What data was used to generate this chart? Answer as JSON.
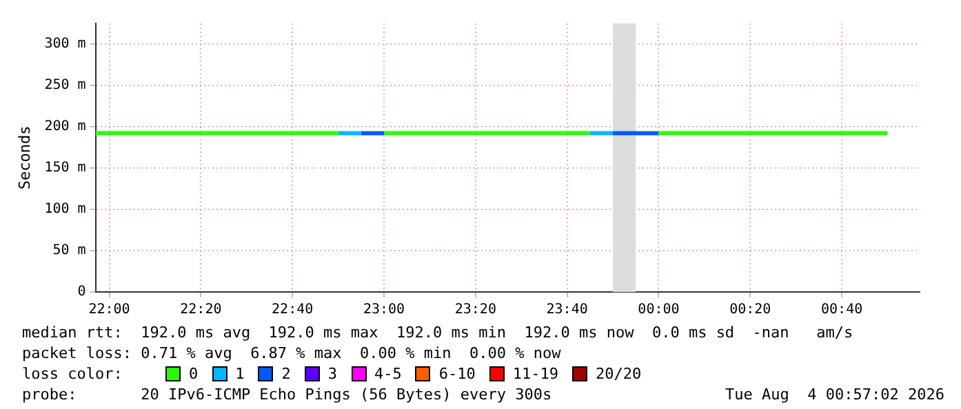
{
  "chart_data": {
    "type": "line",
    "ylabel": "Seconds",
    "legend_title": "loss color:",
    "legend": "bottom",
    "grid": true,
    "marker": "none",
    "line_style": "solid",
    "xlim": [
      "2026-08-03T21:57",
      "2026-08-04T00:57"
    ],
    "xticks": [
      {
        "value": "2026-08-03T22:00",
        "label": "22:00"
      },
      {
        "value": "2026-08-03T22:20",
        "label": "22:20"
      },
      {
        "value": "2026-08-03T22:40",
        "label": "22:40"
      },
      {
        "value": "2026-08-03T23:00",
        "label": "23:00"
      },
      {
        "value": "2026-08-03T23:20",
        "label": "23:20"
      },
      {
        "value": "2026-08-03T23:40",
        "label": "23:40"
      },
      {
        "value": "2026-08-04T00:00",
        "label": "00:00"
      },
      {
        "value": "2026-08-04T00:20",
        "label": "00:20"
      },
      {
        "value": "2026-08-04T00:40",
        "label": "00:40"
      }
    ],
    "ylim": [
      0,
      325
    ],
    "yticks": [
      {
        "value": 0,
        "label": "0"
      },
      {
        "value": 50,
        "label": "50 m"
      },
      {
        "value": 100,
        "label": "100 m"
      },
      {
        "value": 150,
        "label": "150 m"
      },
      {
        "value": 200,
        "label": "200 m"
      },
      {
        "value": 250,
        "label": "250 m"
      },
      {
        "value": 300,
        "label": "300 m"
      }
    ],
    "bands": [
      {
        "axis": "x",
        "from": "2026-08-03T23:50",
        "to": "2026-08-03T23:55",
        "color": "#dddddd"
      }
    ],
    "series": [
      {
        "name": "0",
        "color": "#26ff00",
        "x": [
          "2026-08-03T21:57",
          "2026-08-03T22:50",
          "2026-08-03T22:51",
          "2026-08-03T23:00",
          "2026-08-03T23:45",
          "2026-08-03T23:46",
          "2026-08-04T00:00",
          "2026-08-04T00:50"
        ],
        "values": [
          192,
          192,
          null,
          192,
          192,
          null,
          192,
          192
        ]
      },
      {
        "name": "1",
        "color": "#00b8ff",
        "x": [
          "2026-08-03T22:50",
          "2026-08-03T22:55",
          "2026-08-03T22:57",
          "2026-08-03T23:45",
          "2026-08-03T23:50"
        ],
        "values": [
          192,
          192,
          null,
          192,
          192
        ]
      },
      {
        "name": "2",
        "color": "#0059ff",
        "x": [
          "2026-08-03T22:55",
          "2026-08-03T23:00",
          "2026-08-03T23:30",
          "2026-08-03T23:50",
          "2026-08-04T00:00"
        ],
        "values": [
          192,
          192,
          null,
          192,
          192
        ]
      },
      {
        "name": "3",
        "color": "#5e00ff"
      },
      {
        "name": "4-5",
        "color": "#ff00f5"
      },
      {
        "name": "6-10",
        "color": "#ff5e00"
      },
      {
        "name": "11-19",
        "color": "#ff0000"
      },
      {
        "name": "20/20",
        "color": "#a10000"
      }
    ],
    "annotations": [
      "median rtt:  192.0 ms avg  192.0 ms max  192.0 ms min  192.0 ms now  0.0 ms sd  -nan   am/s",
      "packet loss: 0.71 % avg  6.87 % max  0.00 % min  0.00 % now",
      "probe:       20 IPv6-ICMP Echo Pings (56 Bytes) every 300s",
      "Tue Aug  4 00:57:02 2026"
    ]
  }
}
